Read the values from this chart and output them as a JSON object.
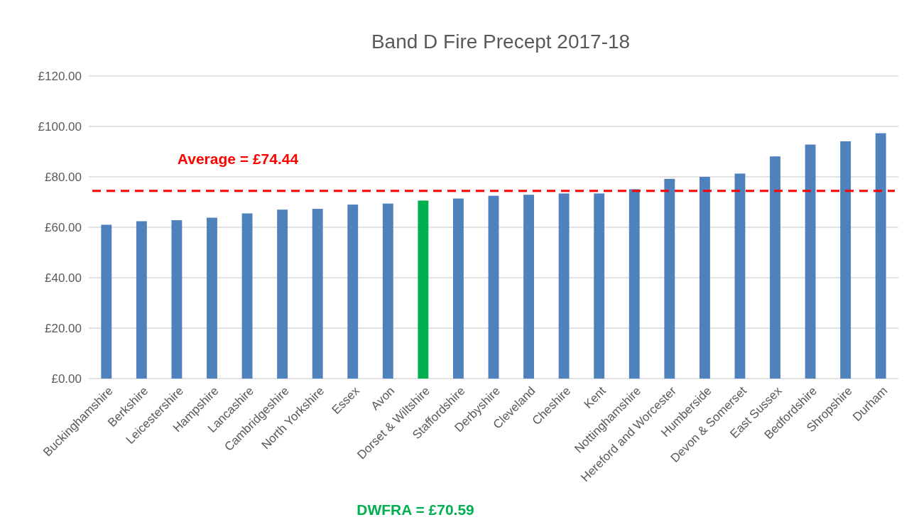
{
  "chart_data": {
    "type": "bar",
    "title": "Band D Fire Precept 2017-18",
    "categories": [
      "Buckinghamshire",
      "Berkshire",
      "Leicestershire",
      "Hampshire",
      "Lancashire",
      "Cambridgeshire",
      "North Yorkshire",
      "Essex",
      "Avon",
      "Dorset & Wiltshire",
      "Staffordshire",
      "Derbyshire",
      "Cleveland",
      "Cheshire",
      "Kent",
      "Nottinghamshire",
      "Hereford and Worcester",
      "Humberside",
      "Devon & Somerset",
      "East Sussex",
      "Bedfordshire",
      "Shropshire",
      "Durham"
    ],
    "values": [
      61.0,
      62.4,
      62.8,
      63.8,
      65.5,
      67.0,
      67.3,
      69.0,
      69.4,
      70.59,
      71.4,
      72.5,
      72.9,
      73.4,
      73.4,
      75.1,
      79.2,
      80.0,
      81.3,
      88.1,
      92.8,
      94.1,
      97.3
    ],
    "colors": [
      "#4f81bd",
      "#4f81bd",
      "#4f81bd",
      "#4f81bd",
      "#4f81bd",
      "#4f81bd",
      "#4f81bd",
      "#4f81bd",
      "#4f81bd",
      "#00b050",
      "#4f81bd",
      "#4f81bd",
      "#4f81bd",
      "#4f81bd",
      "#4f81bd",
      "#4f81bd",
      "#4f81bd",
      "#4f81bd",
      "#4f81bd",
      "#4f81bd",
      "#4f81bd",
      "#4f81bd",
      "#4f81bd"
    ],
    "ylim": [
      0,
      120
    ],
    "yticks": [
      {
        "value": 0,
        "label": "£0.00"
      },
      {
        "value": 20,
        "label": "£20.00"
      },
      {
        "value": 40,
        "label": "£40.00"
      },
      {
        "value": 60,
        "label": "£60.00"
      },
      {
        "value": 80,
        "label": "£80.00"
      },
      {
        "value": 100,
        "label": "£100.00"
      },
      {
        "value": 120,
        "label": "£120.00"
      }
    ],
    "grid": "y",
    "ref_lines": [
      {
        "axis": "y",
        "value": 74.44,
        "label": "Average = £74.44",
        "color": "#ff0000",
        "line_style": "dashed"
      }
    ],
    "annotations": [
      "DWFRA = £70.59"
    ]
  }
}
